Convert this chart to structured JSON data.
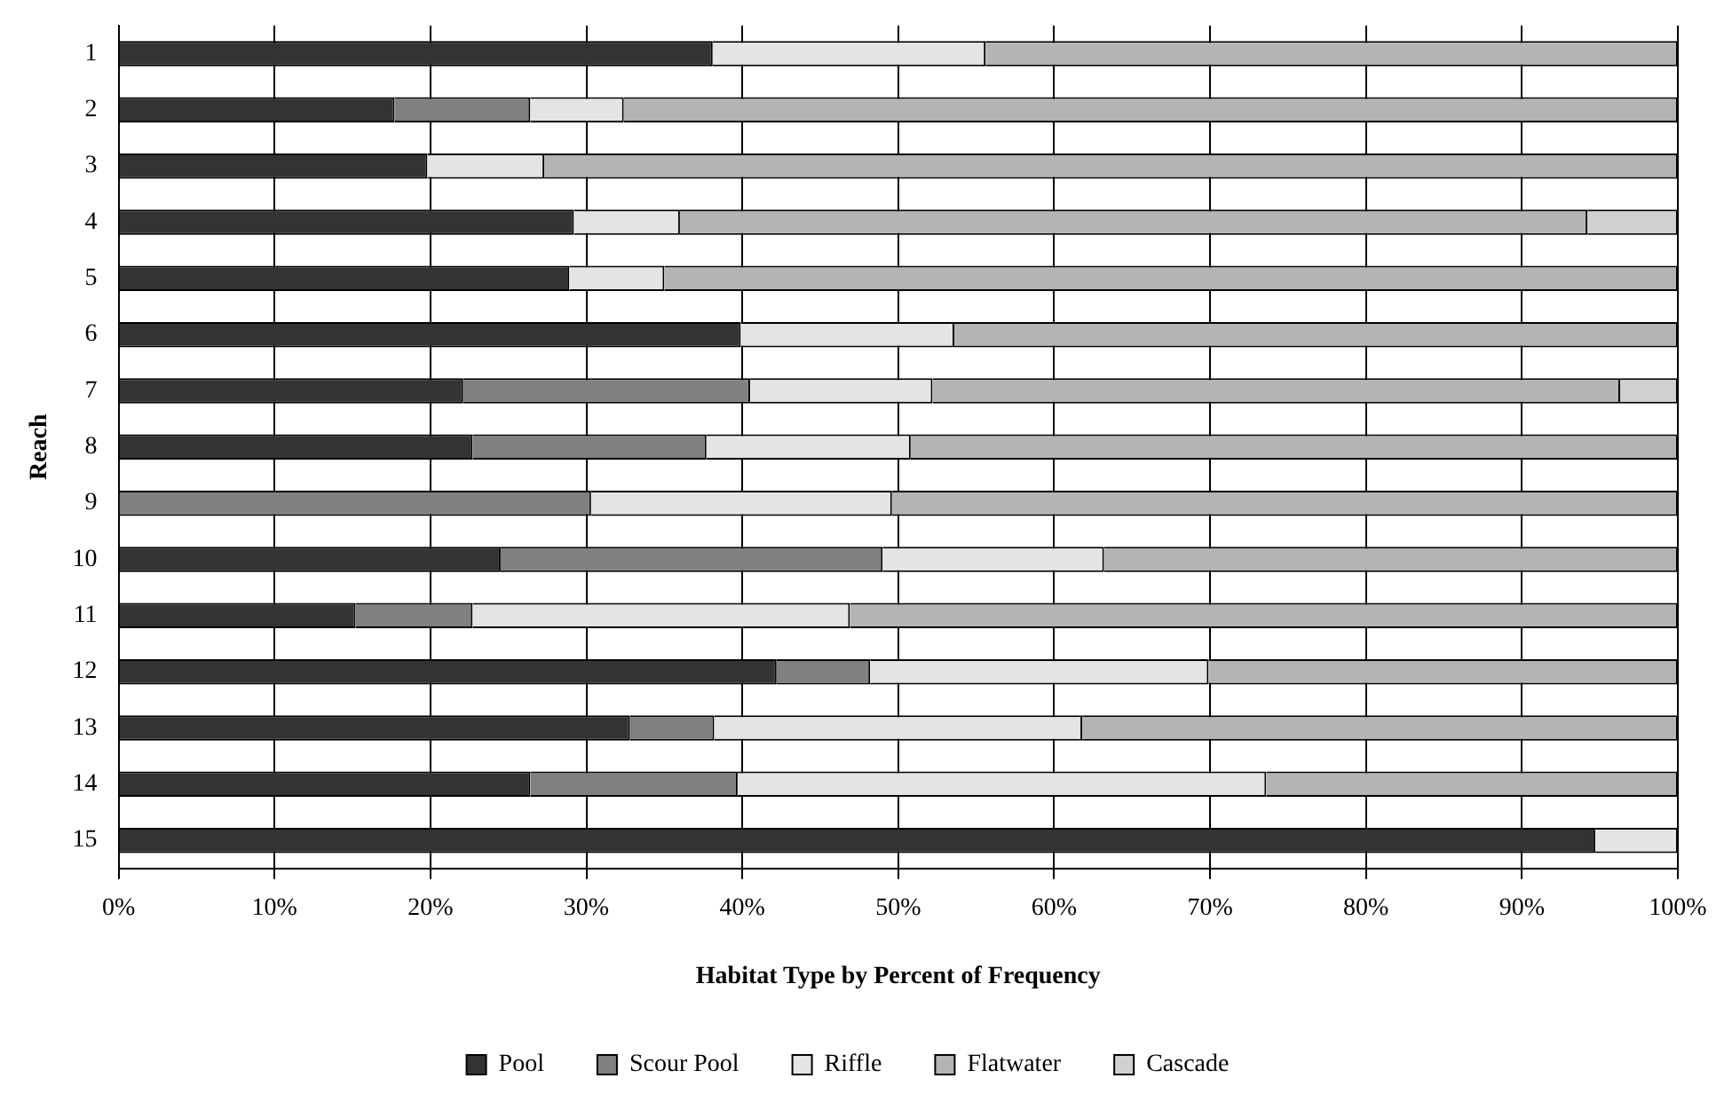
{
  "chart_data": {
    "type": "bar",
    "orientation": "horizontal",
    "stacked": true,
    "categories": [
      "1",
      "2",
      "3",
      "4",
      "5",
      "6",
      "7",
      "8",
      "9",
      "10",
      "11",
      "12",
      "13",
      "14",
      "15"
    ],
    "series": [
      {
        "name": "Pool",
        "color": "#333333",
        "values": [
          38.1,
          17.7,
          19.8,
          29.2,
          28.9,
          39.9,
          22.1,
          22.7,
          0,
          24.5,
          15.2,
          42.2,
          32.8,
          26.4,
          94.7
        ]
      },
      {
        "name": "Scour Pool",
        "color": "#808080",
        "values": [
          0,
          8.7,
          0,
          0,
          0,
          0,
          18.4,
          15.0,
          30.3,
          24.5,
          7.5,
          6.0,
          5.4,
          13.3,
          0
        ]
      },
      {
        "name": "Riffle",
        "color": "#e4e4e4",
        "values": [
          17.5,
          6.0,
          7.5,
          6.8,
          6.1,
          13.7,
          11.7,
          13.1,
          19.3,
          14.2,
          24.2,
          21.7,
          23.6,
          33.9,
          5.3
        ]
      },
      {
        "name": "Flatwater",
        "color": "#b4b4b4",
        "values": [
          44.4,
          67.6,
          72.7,
          58.2,
          65.0,
          46.4,
          44.1,
          49.2,
          50.4,
          36.8,
          53.1,
          30.1,
          38.2,
          26.4,
          0
        ]
      },
      {
        "name": "Cascade",
        "color": "#d0d0d0",
        "values": [
          0,
          0,
          0,
          5.8,
          0,
          0,
          3.7,
          0,
          0,
          0,
          0,
          0,
          0,
          0,
          0
        ]
      }
    ],
    "xlim": [
      0,
      100
    ],
    "xticks": [
      {
        "value": 0,
        "label": "0%"
      },
      {
        "value": 10,
        "label": "10%"
      },
      {
        "value": 20,
        "label": "20%"
      },
      {
        "value": 30,
        "label": "30%"
      },
      {
        "value": 40,
        "label": "40%"
      },
      {
        "value": 50,
        "label": "50%"
      },
      {
        "value": 60,
        "label": "60%"
      },
      {
        "value": 70,
        "label": "70%"
      },
      {
        "value": 80,
        "label": "80%"
      },
      {
        "value": 90,
        "label": "90%"
      },
      {
        "value": 100,
        "label": "100%"
      }
    ],
    "xlabel": "Habitat Type by Percent of Frequency",
    "ylabel": "Reach",
    "grid": "x",
    "legend": "bottom"
  }
}
